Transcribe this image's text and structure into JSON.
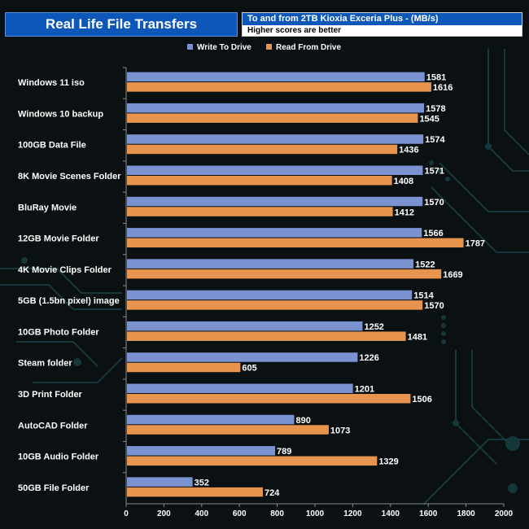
{
  "header": {
    "title": "Real Life File Transfers",
    "subtitle": "To and from 2TB Kioxia Exceria Plus - (MB/s)",
    "note": "Higher scores are better"
  },
  "colors": {
    "write": "#7b92d0",
    "read": "#e6944e",
    "header_bg": "#0d57b8",
    "background": "#0b1012",
    "circuit": "#15383c"
  },
  "chart_data": {
    "type": "bar",
    "orientation": "horizontal",
    "title": "Real Life File Transfers",
    "subtitle": "To and from 2TB Kioxia Exceria Plus - (MB/s)",
    "categories": [
      "Windows 11 iso",
      "Windows 10 backup",
      "100GB Data File",
      "8K Movie Scenes Folder",
      "BluRay Movie",
      "12GB Movie Folder",
      "4K Movie Clips Folder",
      "5GB (1.5bn pixel) image",
      "10GB Photo Folder",
      "Steam folder",
      "3D Print Folder",
      "AutoCAD Folder",
      "10GB Audio Folder",
      "50GB File Folder"
    ],
    "series": [
      {
        "name": "Write To  Drive",
        "values": [
          1581,
          1578,
          1574,
          1571,
          1570,
          1566,
          1522,
          1514,
          1252,
          1226,
          1201,
          890,
          789,
          352
        ]
      },
      {
        "name": "Read From  Drive",
        "values": [
          1616,
          1545,
          1436,
          1408,
          1412,
          1787,
          1669,
          1570,
          1481,
          605,
          1506,
          1073,
          1329,
          724
        ]
      }
    ],
    "xlim": [
      0,
      2000
    ],
    "xticks": [
      0,
      200,
      400,
      600,
      800,
      1000,
      1200,
      1400,
      1600,
      1800,
      2000
    ],
    "xlabel": "",
    "ylabel": "",
    "legend": "top-center",
    "grid": false
  }
}
